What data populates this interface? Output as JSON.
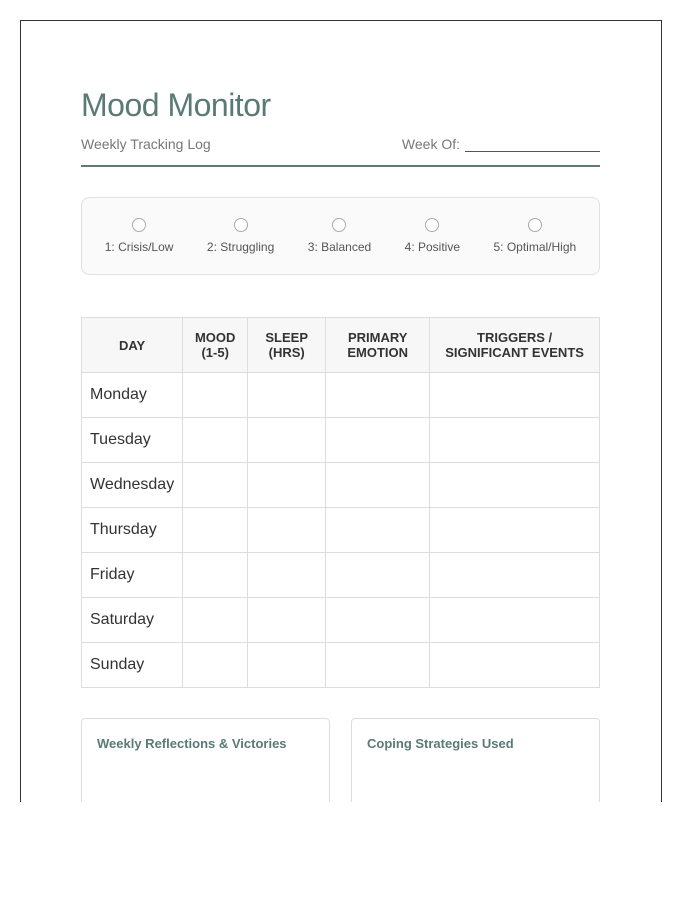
{
  "header": {
    "title": "Mood Monitor",
    "subtitle": "Weekly Tracking Log",
    "week_label": "Week Of:"
  },
  "legend": [
    {
      "label": "1: Crisis/Low"
    },
    {
      "label": "2: Struggling"
    },
    {
      "label": "3: Balanced"
    },
    {
      "label": "4: Positive"
    },
    {
      "label": "5: Optimal/High"
    }
  ],
  "table": {
    "headers": [
      [
        "DAY"
      ],
      [
        "MOOD",
        "(1-5)"
      ],
      [
        "SLEEP",
        "(HRS)"
      ],
      [
        "PRIMARY",
        "EMOTION"
      ],
      [
        "TRIGGERS /",
        "SIGNIFICANT EVENTS"
      ]
    ],
    "days": [
      "Monday",
      "Tuesday",
      "Wednesday",
      "Thursday",
      "Friday",
      "Saturday",
      "Sunday"
    ]
  },
  "cards": [
    {
      "title": "Weekly Reflections & Victories"
    },
    {
      "title": "Coping Strategies Used"
    }
  ],
  "colors": {
    "accent": "#5a7a76"
  }
}
